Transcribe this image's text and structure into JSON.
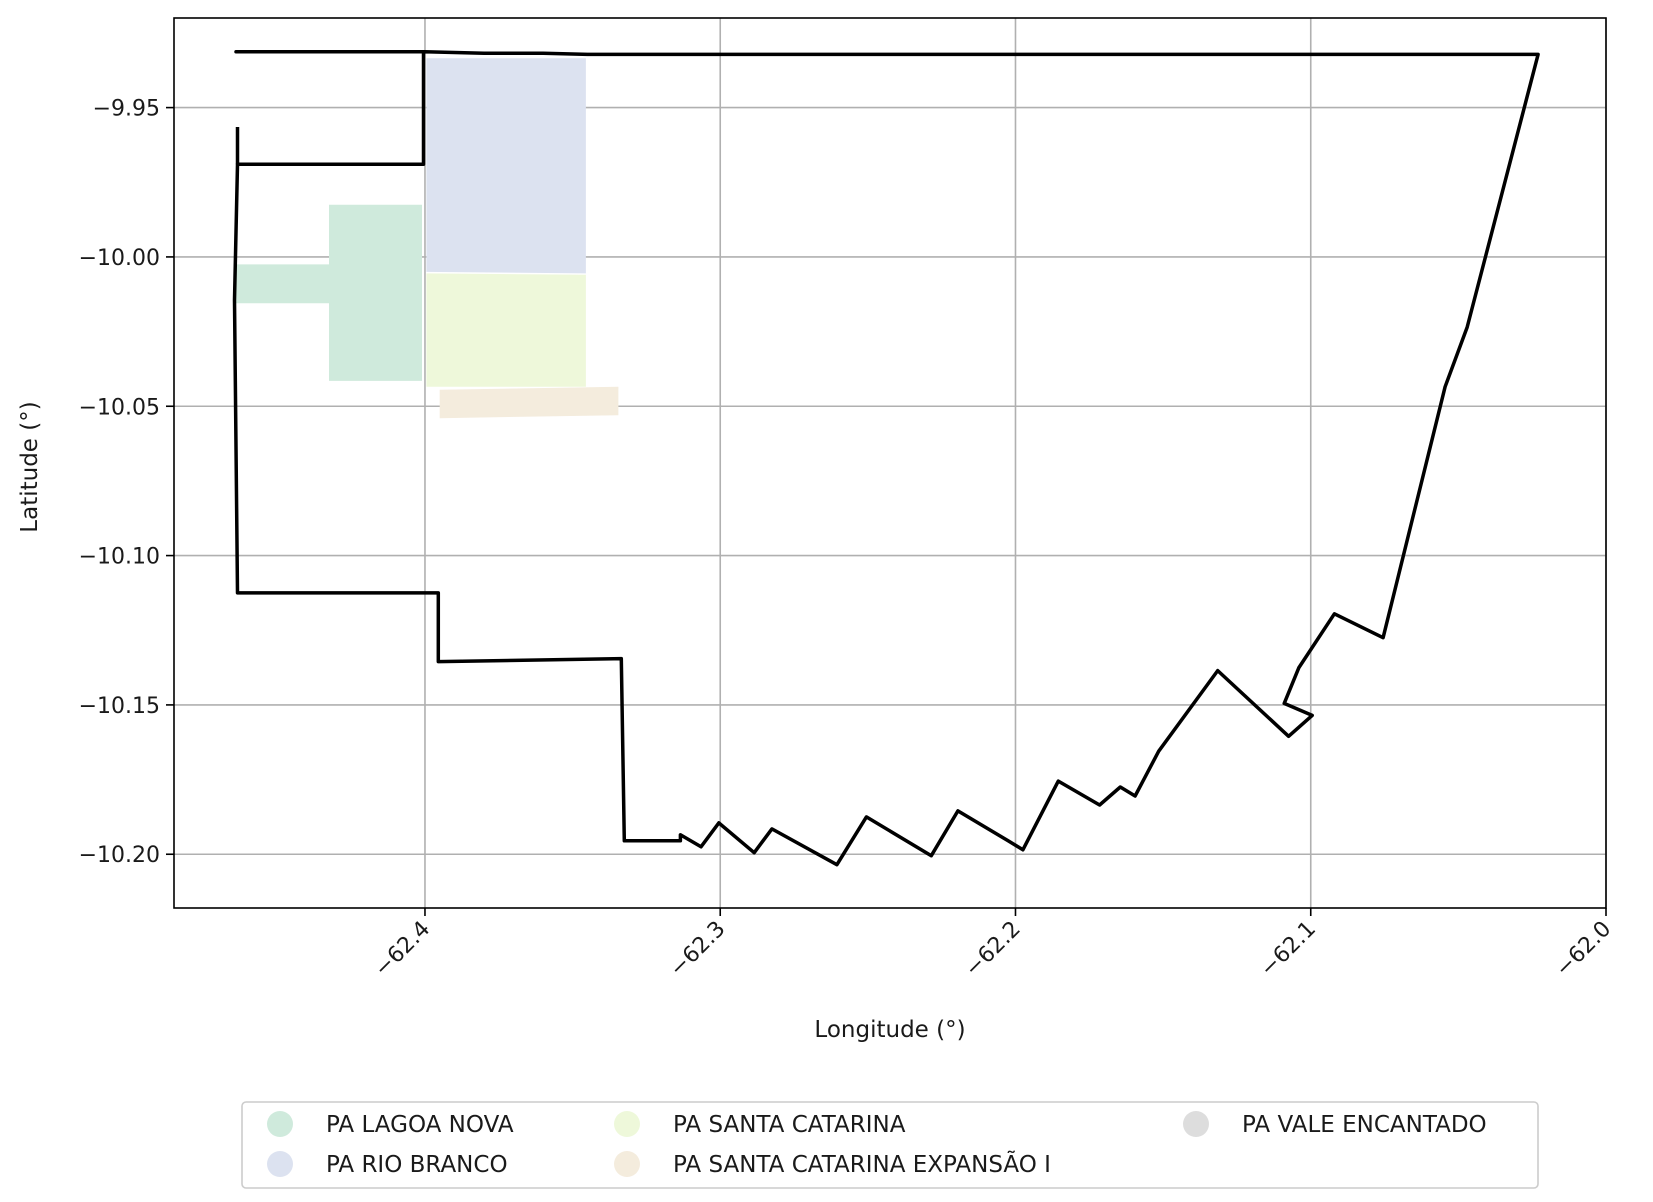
{
  "chart_data": {
    "type": "map",
    "xlabel": "Longitude (°)",
    "ylabel": "Latitude (°)",
    "xlim": [
      -62.485,
      -62.0
    ],
    "ylim": [
      -10.218,
      -9.92
    ],
    "xticks": [
      {
        "value": -62.4,
        "label": "−62.4"
      },
      {
        "value": -62.3,
        "label": "−62.3"
      },
      {
        "value": -62.2,
        "label": "−62.2"
      },
      {
        "value": -62.1,
        "label": "−62.1"
      },
      {
        "value": -62.0,
        "label": "−62.0"
      }
    ],
    "yticks": [
      {
        "value": -9.95,
        "label": "−9.95"
      },
      {
        "value": -10.0,
        "label": "−10.00"
      },
      {
        "value": -10.05,
        "label": "−10.05"
      },
      {
        "value": -10.1,
        "label": "−10.10"
      },
      {
        "value": -10.15,
        "label": "−10.15"
      },
      {
        "value": -10.2,
        "label": "−10.20"
      }
    ],
    "grid": true,
    "legend_position": "bottom-center",
    "legend": [
      {
        "label": "PA LAGOA NOVA",
        "color": "#cfeadc"
      },
      {
        "label": "PA RIO BRANCO",
        "color": "#dce2f0"
      },
      {
        "label": "PA SANTA CATARINA",
        "color": "#eef8da"
      },
      {
        "label": "PA SANTA CATARINA EXPANSÃO I",
        "color": "#f4ecdd"
      },
      {
        "label": "PA VALE ENCANTADO",
        "color": "#dddddd"
      }
    ],
    "series": [
      {
        "name": "PA LAGOA NOVA",
        "color": "#cfeadc",
        "polygon": [
          [
            -62.4645,
            -10.0025
          ],
          [
            -62.4325,
            -10.0025
          ],
          [
            -62.4325,
            -9.9825
          ],
          [
            -62.401,
            -9.9825
          ],
          [
            -62.401,
            -10.0415
          ],
          [
            -62.4325,
            -10.0415
          ],
          [
            -62.4325,
            -10.0155
          ],
          [
            -62.4645,
            -10.0155
          ]
        ]
      },
      {
        "name": "PA RIO BRANCO",
        "color": "#dce2f0",
        "polygon": [
          [
            -62.3995,
            -9.9335
          ],
          [
            -62.3455,
            -9.9335
          ],
          [
            -62.3455,
            -10.0055
          ],
          [
            -62.3995,
            -10.005
          ]
        ]
      },
      {
        "name": "PA SANTA CATARINA",
        "color": "#eef8da",
        "polygon": [
          [
            -62.3995,
            -10.0055
          ],
          [
            -62.3455,
            -10.006
          ],
          [
            -62.3455,
            -10.0435
          ],
          [
            -62.3995,
            -10.0435
          ]
        ]
      },
      {
        "name": "PA SANTA CATARINA EXPANSÃO I",
        "color": "#f4ecdd",
        "polygon": [
          [
            -62.395,
            -10.0445
          ],
          [
            -62.3345,
            -10.0435
          ],
          [
            -62.3345,
            -10.053
          ],
          [
            -62.395,
            -10.054
          ]
        ]
      },
      {
        "name": "PA VALE ENCANTADO",
        "color": "#000000",
        "outline": true,
        "polygon": [
          [
            -62.464,
            -9.9313
          ],
          [
            -62.4,
            -9.9313
          ],
          [
            -62.38,
            -9.9318
          ],
          [
            -62.36,
            -9.9318
          ],
          [
            -62.345,
            -9.9322
          ],
          [
            -62.2,
            -9.9322
          ],
          [
            -62.023,
            -9.9322
          ],
          [
            -62.047,
            -10.0235
          ],
          [
            -62.0545,
            -10.0435
          ],
          [
            -62.0755,
            -10.1275
          ],
          [
            -62.092,
            -10.1195
          ],
          [
            -62.104,
            -10.1375
          ],
          [
            -62.109,
            -10.1495
          ],
          [
            -62.0995,
            -10.1535
          ],
          [
            -62.1075,
            -10.1605
          ],
          [
            -62.1315,
            -10.1385
          ],
          [
            -62.1515,
            -10.1655
          ],
          [
            -62.1595,
            -10.1805
          ],
          [
            -62.1645,
            -10.1775
          ],
          [
            -62.1715,
            -10.1835
          ],
          [
            -62.1855,
            -10.1755
          ],
          [
            -62.1975,
            -10.1985
          ],
          [
            -62.2025,
            -10.1955
          ],
          [
            -62.2195,
            -10.1855
          ],
          [
            -62.2285,
            -10.2005
          ],
          [
            -62.2505,
            -10.1875
          ],
          [
            -62.2605,
            -10.2035
          ],
          [
            -62.2825,
            -10.1915
          ],
          [
            -62.2885,
            -10.1995
          ],
          [
            -62.3005,
            -10.1895
          ],
          [
            -62.3065,
            -10.1975
          ],
          [
            -62.3135,
            -10.1935
          ],
          [
            -62.3135,
            -10.1955
          ],
          [
            -62.3325,
            -10.1955
          ],
          [
            -62.3335,
            -10.1345
          ],
          [
            -62.3955,
            -10.1355
          ],
          [
            -62.3955,
            -10.1125
          ],
          [
            -62.4635,
            -10.1125
          ],
          [
            -62.4645,
            -10.0145
          ],
          [
            -62.4635,
            -9.969
          ],
          [
            -62.4005,
            -9.969
          ],
          [
            -62.4005,
            -9.9313
          ]
        ],
        "branch": [
          [
            -62.4635,
            -9.9565
          ],
          [
            -62.4635,
            -9.969
          ]
        ]
      }
    ]
  }
}
